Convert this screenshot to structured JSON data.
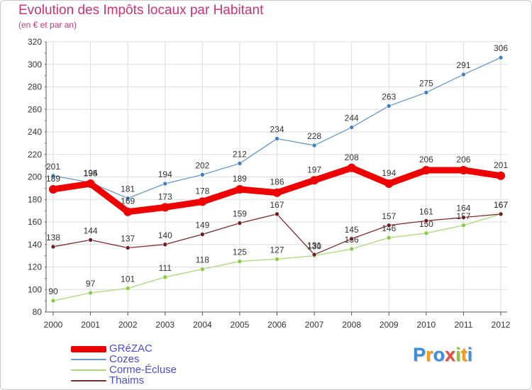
{
  "header": {
    "title": "Evolution des Impôts locaux par Habitant",
    "subtitle": "(en € et par an)"
  },
  "chart_data": {
    "type": "line",
    "title": "Evolution des Impôts locaux par Habitant",
    "subtitle": "(en € et par an)",
    "xlabel": "",
    "ylabel": "",
    "categories": [
      "2000",
      "2001",
      "2002",
      "2003",
      "2004",
      "2005",
      "2006",
      "2007",
      "2008",
      "2009",
      "2010",
      "2011",
      "2012"
    ],
    "ylim": [
      80,
      320
    ],
    "yticks": [
      80,
      100,
      120,
      140,
      160,
      180,
      200,
      220,
      240,
      260,
      280,
      300,
      320
    ],
    "grid": true,
    "legend_position": "bottom-left",
    "series": [
      {
        "name": "Cozes",
        "values": [
          201,
          195,
          181,
          194,
          202,
          212,
          234,
          228,
          244,
          263,
          275,
          291,
          306
        ],
        "color": "#6699cc",
        "marker": "#3f80c0"
      },
      {
        "name": "Corme-Écluse",
        "values": [
          90,
          97,
          101,
          111,
          118,
          125,
          127,
          130,
          136,
          146,
          150,
          157,
          167
        ],
        "color": "#a8d878",
        "marker": "#88cc44"
      },
      {
        "name": "Thaims",
        "values": [
          138,
          144,
          137,
          140,
          149,
          159,
          167,
          131,
          145,
          157,
          161,
          164,
          167
        ],
        "color": "#7a2a2a",
        "marker": "#6b1f1f"
      },
      {
        "name": "GRéZAC",
        "values": [
          189,
          194,
          169,
          173,
          178,
          189,
          186,
          197,
          208,
          194,
          206,
          206,
          201
        ],
        "color": "#ee0000",
        "marker": "#ee0000"
      }
    ]
  },
  "legend": {
    "items": [
      {
        "label": "GRéZAC",
        "color": "#ee0000"
      },
      {
        "label": "Cozes",
        "color": "#6699cc"
      },
      {
        "label": "Corme-Écluse",
        "color": "#a8d878"
      },
      {
        "label": "Thaims",
        "color": "#7a2a2a"
      }
    ]
  },
  "logo": {
    "text": "Proxiti",
    "letters": [
      {
        "ch": "P",
        "color": "#3f8fd8"
      },
      {
        "ch": "r",
        "color": "#f39c12"
      },
      {
        "ch": "o",
        "color": "#3f8fd8"
      },
      {
        "ch": "x",
        "color": "#e74c3c"
      },
      {
        "ch": "i",
        "color": "#8cc63f"
      },
      {
        "ch": "t",
        "color": "#f39c12"
      },
      {
        "ch": "i",
        "color": "#3f8fd8"
      }
    ]
  }
}
